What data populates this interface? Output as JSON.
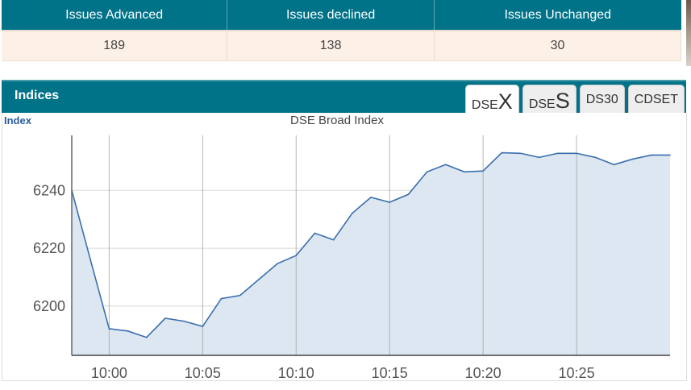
{
  "issues": {
    "headers": [
      "Issues Advanced",
      "Issues declined",
      "Issues Unchanged"
    ],
    "values": [
      "189",
      "138",
      "30"
    ]
  },
  "indices": {
    "title": "Indices",
    "tabs": [
      {
        "small": "DSE",
        "big": "X",
        "active": true
      },
      {
        "small": "DSE",
        "big": "S",
        "active": false
      },
      {
        "small": "DS30",
        "big": "",
        "active": false
      },
      {
        "small": "CDSET",
        "big": "",
        "active": false
      }
    ]
  },
  "chart_data": {
    "type": "area",
    "title": "DSE Broad Index",
    "ylabel": "Index",
    "x": [
      "9:58",
      "9:59",
      "10:00",
      "10:01",
      "10:02",
      "10:03",
      "10:04",
      "10:05",
      "10:06",
      "10:07",
      "10:08",
      "10:09",
      "10:10",
      "10:11",
      "10:12",
      "10:13",
      "10:14",
      "10:15",
      "10:16",
      "10:17",
      "10:18",
      "10:19",
      "10:20",
      "10:21",
      "10:22",
      "10:23",
      "10:24",
      "10:25",
      "10:26",
      "10:27",
      "10:28",
      "10:29",
      "10:30"
    ],
    "values": [
      6240,
      6216,
      6192.2,
      6191.4,
      6189.2,
      6195.8,
      6194.8,
      6193,
      6202.6,
      6203.7,
      6209.2,
      6214.7,
      6217.5,
      6225.2,
      6222.9,
      6232.1,
      6237.6,
      6235.9,
      6238.6,
      6246.4,
      6248.9,
      6246.4,
      6246.7,
      6253,
      6252.8,
      6251.4,
      6252.8,
      6252.8,
      6251.4,
      6248.9,
      6250.8,
      6252.2,
      6252.2
    ],
    "yticks": [
      6200,
      6220,
      6240
    ],
    "xticks": [
      "10:00",
      "10:05",
      "10:10",
      "10:15",
      "10:20",
      "10:25"
    ],
    "ylim": [
      6183,
      6259
    ],
    "xrange_minutes": [
      -2,
      30
    ],
    "colors": {
      "line": "#3a6fae",
      "fill": "#dde7f1"
    }
  }
}
